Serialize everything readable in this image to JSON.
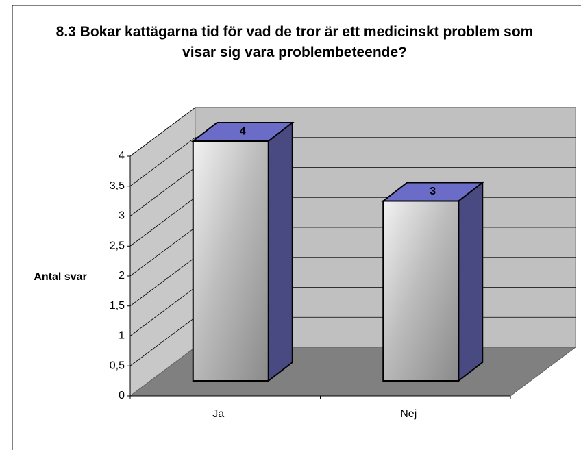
{
  "chart_data": {
    "type": "bar3d",
    "title": "8.3 Bokar kattägarna tid för vad de tror är ett medicinskt problem som visar sig vara problembeteende?",
    "y_label": "Antal svar",
    "categories": [
      "Ja",
      "Nej"
    ],
    "values": [
      4,
      3
    ],
    "color": "#6b6bc8",
    "ylim": [
      0,
      4
    ],
    "yticks": [
      0,
      {
        "value": 0.5,
        "label": "0,5"
      },
      1,
      {
        "value": 1.5,
        "label": "1,5"
      },
      2,
      {
        "value": 2.5,
        "label": "2,5"
      },
      3,
      {
        "value": 3.5,
        "label": "3,5"
      },
      4
    ],
    "grid": true
  }
}
